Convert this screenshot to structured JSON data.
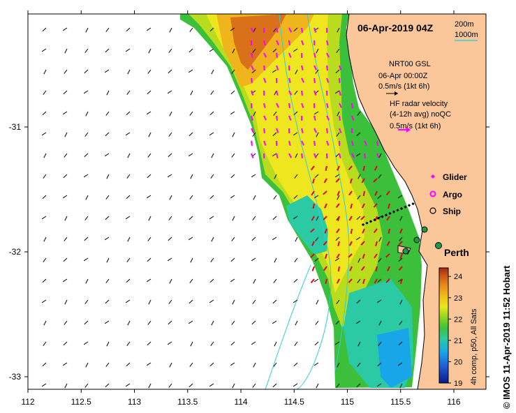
{
  "title": "06-Apr-2019 04Z",
  "bathymetry_legend": {
    "contour_200m": "200m",
    "contour_1000m": "1000m",
    "color": "#2fd0d8"
  },
  "model_note": [
    "NRT00 GSL",
    "06-Apr 00:00Z",
    "0.5m/s (1kt 6h)"
  ],
  "radar_note": [
    "HF radar velocity",
    "(4-12h avg) noQC",
    "0.5m/s (1kt 6h)"
  ],
  "markers": {
    "glider": {
      "label": "Glider",
      "color": "#ff00ff",
      "symbol": "diamond"
    },
    "argo": {
      "label": "Argo",
      "color": "#ff00ff",
      "symbol": "ring"
    },
    "ship": {
      "label": "Ship",
      "color": "#000000",
      "symbol": "circle"
    }
  },
  "city": {
    "label": "Perth",
    "lon": 115.86,
    "lat": -31.95
  },
  "colorbar": {
    "ticks": [
      "24",
      "23",
      "22",
      "21",
      "20",
      "19"
    ],
    "min": 19,
    "max": 24.4,
    "caption": "4h comp, p50, All Sats",
    "colors": [
      "#0c1a8c",
      "#1f5fd6",
      "#19a6e8",
      "#2cc9a5",
      "#3cc43a",
      "#8fd61f",
      "#e8e81a",
      "#f2c01a",
      "#e8901c",
      "#cc5a16",
      "#9e2b12"
    ]
  },
  "credit": "© IMOS 11-Apr-2019 11:52 Hobart",
  "axes": {
    "x_ticks": [
      "112",
      "112.5",
      "113",
      "113.5",
      "114",
      "114.5",
      "115",
      "115.5",
      "116"
    ],
    "y_ticks": [
      "-31",
      "-32",
      "-33"
    ],
    "lon_range": [
      112,
      116.3
    ],
    "lat_range": [
      -33.1,
      -30.05
    ]
  },
  "colors": {
    "land": "#fbc79a",
    "arrow_model": "#000000",
    "arrow_radar_north": "#ff00ff",
    "arrow_radar_south": "#e8001a"
  }
}
